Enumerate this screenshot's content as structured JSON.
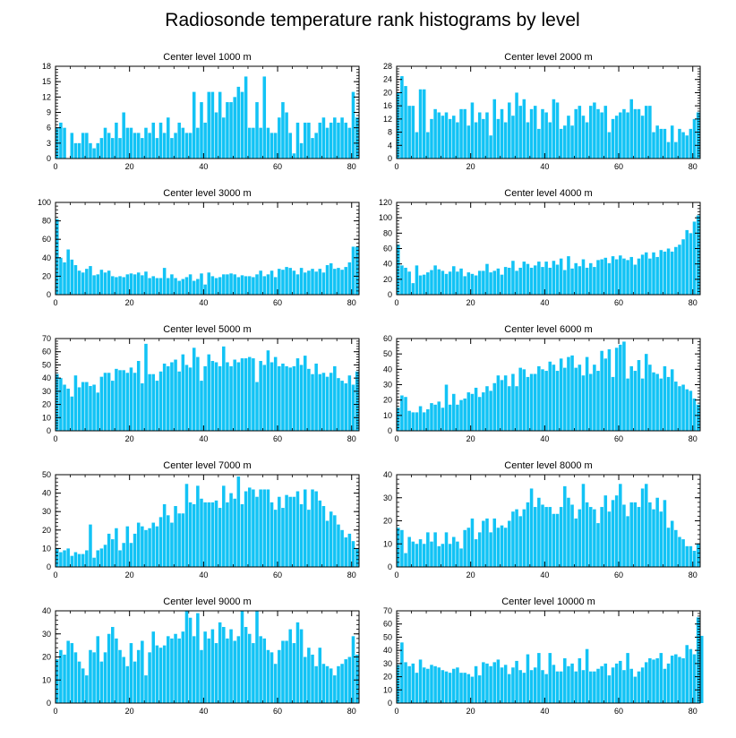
{
  "figure": {
    "title": "Radiosonde temperature rank histograms by level",
    "bar_color": "#12C3F5",
    "bar_edge_color": "#ffffff",
    "axis_color": "#000000"
  },
  "chart_data": [
    {
      "type": "bar",
      "title": "Center level 1000 m",
      "xlabel": "",
      "ylabel": "",
      "xlim": [
        0,
        82
      ],
      "ylim": [
        0,
        18
      ],
      "xticks": [
        0,
        20,
        40,
        60,
        80
      ],
      "yticks": [
        0,
        3,
        6,
        9,
        12,
        15,
        18
      ],
      "x_start": 0,
      "values": [
        6,
        7,
        6,
        0,
        5,
        3,
        3,
        5,
        5,
        3,
        2,
        3,
        4,
        6,
        5,
        4,
        7,
        4,
        9,
        6,
        6,
        5,
        5,
        4,
        6,
        5,
        7,
        4,
        7,
        5,
        8,
        4,
        5,
        7,
        6,
        5,
        5,
        13,
        6,
        11,
        7,
        13,
        13,
        9,
        13,
        8,
        11,
        11,
        12,
        14,
        13,
        16,
        6,
        6,
        11,
        6,
        16,
        6,
        5,
        5,
        8,
        11,
        9,
        5,
        1,
        7,
        3,
        7,
        7,
        4,
        5,
        7,
        8,
        6,
        7,
        8,
        7,
        8,
        7,
        6,
        13,
        8
      ]
    },
    {
      "type": "bar",
      "title": "Center level 2000 m",
      "xlabel": "",
      "ylabel": "",
      "xlim": [
        0,
        82
      ],
      "ylim": [
        0,
        28
      ],
      "xticks": [
        0,
        20,
        40,
        60,
        80
      ],
      "yticks": [
        0,
        4,
        8,
        12,
        16,
        20,
        24,
        28
      ],
      "x_start": 0,
      "values": [
        20,
        25,
        22,
        16,
        16,
        8,
        21,
        21,
        8,
        12,
        15,
        14,
        13,
        14,
        12,
        13,
        11,
        15,
        15,
        10,
        17,
        11,
        14,
        12,
        14,
        7,
        18,
        12,
        15,
        11,
        17,
        13,
        20,
        16,
        18,
        11,
        15,
        16,
        9,
        15,
        14,
        11,
        18,
        17,
        9,
        10,
        13,
        10,
        15,
        16,
        13,
        11,
        16,
        17,
        15,
        14,
        16,
        8,
        12,
        13,
        14,
        15,
        14,
        18,
        15,
        15,
        13,
        16,
        16,
        8,
        10,
        9,
        9,
        5,
        10,
        5,
        9,
        8,
        7,
        9,
        12,
        14
      ]
    },
    {
      "type": "bar",
      "title": "Center level 3000 m",
      "xlabel": "",
      "ylabel": "",
      "xlim": [
        0,
        82
      ],
      "ylim": [
        0,
        100
      ],
      "xticks": [
        0,
        20,
        40,
        60,
        80
      ],
      "yticks": [
        0,
        20,
        40,
        60,
        80,
        100
      ],
      "x_start": 0,
      "values": [
        82,
        40,
        35,
        49,
        38,
        32,
        26,
        24,
        28,
        31,
        21,
        22,
        27,
        24,
        26,
        20,
        19,
        20,
        19,
        22,
        23,
        22,
        24,
        21,
        25,
        18,
        20,
        18,
        18,
        29,
        18,
        22,
        18,
        15,
        17,
        19,
        22,
        15,
        17,
        23,
        11,
        24,
        20,
        18,
        19,
        22,
        22,
        23,
        22,
        19,
        21,
        20,
        20,
        19,
        22,
        26,
        20,
        22,
        26,
        19,
        28,
        27,
        30,
        29,
        26,
        22,
        29,
        24,
        26,
        28,
        25,
        28,
        24,
        32,
        34,
        28,
        29,
        27,
        30,
        35,
        52,
        52
      ]
    },
    {
      "type": "bar",
      "title": "Center level 4000 m",
      "xlabel": "",
      "ylabel": "",
      "xlim": [
        0,
        82
      ],
      "ylim": [
        0,
        120
      ],
      "xticks": [
        0,
        20,
        40,
        60,
        80
      ],
      "yticks": [
        0,
        20,
        40,
        60,
        80,
        100,
        120
      ],
      "x_start": 0,
      "values": [
        65,
        38,
        35,
        30,
        15,
        38,
        25,
        26,
        29,
        32,
        38,
        33,
        31,
        27,
        30,
        37,
        30,
        34,
        24,
        29,
        27,
        25,
        31,
        31,
        40,
        29,
        31,
        34,
        26,
        36,
        35,
        44,
        31,
        35,
        43,
        40,
        35,
        38,
        43,
        36,
        43,
        35,
        44,
        39,
        47,
        32,
        50,
        34,
        41,
        37,
        46,
        35,
        41,
        36,
        45,
        46,
        48,
        41,
        50,
        46,
        51,
        47,
        45,
        49,
        39,
        47,
        52,
        55,
        47,
        55,
        49,
        58,
        56,
        60,
        56,
        62,
        65,
        72,
        84,
        80,
        95,
        103
      ]
    },
    {
      "type": "bar",
      "title": "Center level 5000 m",
      "xlabel": "",
      "ylabel": "",
      "xlim": [
        0,
        82
      ],
      "ylim": [
        0,
        70
      ],
      "xticks": [
        0,
        20,
        40,
        60,
        80
      ],
      "yticks": [
        0,
        10,
        20,
        30,
        40,
        50,
        60,
        70
      ],
      "x_start": 0,
      "values": [
        43,
        40,
        35,
        32,
        26,
        42,
        33,
        37,
        37,
        34,
        35,
        29,
        41,
        44,
        44,
        38,
        47,
        46,
        46,
        44,
        48,
        44,
        53,
        36,
        66,
        43,
        43,
        38,
        45,
        51,
        49,
        52,
        54,
        45,
        58,
        50,
        48,
        63,
        56,
        38,
        49,
        58,
        53,
        52,
        49,
        64,
        52,
        49,
        54,
        52,
        55,
        55,
        56,
        55,
        37,
        53,
        50,
        61,
        52,
        56,
        49,
        51,
        49,
        48,
        49,
        55,
        50,
        57,
        47,
        43,
        51,
        43,
        44,
        41,
        44,
        49,
        40,
        38,
        36,
        42,
        35,
        45
      ]
    },
    {
      "type": "bar",
      "title": "Center level 6000 m",
      "xlabel": "",
      "ylabel": "",
      "xlim": [
        0,
        82
      ],
      "ylim": [
        0,
        60
      ],
      "xticks": [
        0,
        20,
        40,
        60,
        80
      ],
      "yticks": [
        0,
        10,
        20,
        30,
        40,
        50,
        60
      ],
      "x_start": 0,
      "values": [
        15,
        23,
        22,
        13,
        12,
        12,
        16,
        12,
        14,
        18,
        17,
        19,
        15,
        30,
        17,
        24,
        17,
        20,
        21,
        25,
        24,
        28,
        22,
        25,
        29,
        26,
        31,
        36,
        33,
        36,
        29,
        37,
        29,
        41,
        40,
        35,
        37,
        37,
        42,
        40,
        39,
        45,
        43,
        39,
        47,
        41,
        48,
        49,
        41,
        43,
        36,
        48,
        37,
        43,
        39,
        52,
        47,
        53,
        35,
        54,
        56,
        58,
        34,
        42,
        39,
        46,
        34,
        50,
        43,
        38,
        37,
        34,
        42,
        35,
        40,
        32,
        29,
        30,
        27,
        26,
        21,
        17
      ]
    },
    {
      "type": "bar",
      "title": "Center level 7000 m",
      "xlabel": "",
      "ylabel": "",
      "xlim": [
        0,
        82
      ],
      "ylim": [
        0,
        50
      ],
      "xticks": [
        0,
        20,
        40,
        60,
        80
      ],
      "yticks": [
        0,
        10,
        20,
        30,
        40,
        50
      ],
      "x_start": 0,
      "values": [
        10,
        8,
        9,
        10,
        6,
        8,
        7,
        7,
        9,
        23,
        5,
        9,
        10,
        12,
        18,
        15,
        21,
        9,
        13,
        22,
        13,
        18,
        24,
        22,
        20,
        21,
        24,
        22,
        27,
        34,
        28,
        24,
        33,
        29,
        29,
        45,
        35,
        34,
        44,
        37,
        35,
        35,
        35,
        36,
        32,
        44,
        35,
        40,
        37,
        49,
        34,
        41,
        43,
        42,
        38,
        42,
        42,
        42,
        35,
        31,
        38,
        32,
        39,
        38,
        38,
        41,
        34,
        42,
        31,
        42,
        41,
        36,
        33,
        25,
        30,
        28,
        23,
        20,
        16,
        18,
        14,
        10
      ]
    },
    {
      "type": "bar",
      "title": "Center level 8000 m",
      "xlabel": "",
      "ylabel": "",
      "xlim": [
        0,
        82
      ],
      "ylim": [
        0,
        40
      ],
      "xticks": [
        0,
        20,
        40,
        60,
        80
      ],
      "yticks": [
        0,
        10,
        20,
        30,
        40
      ],
      "x_start": 0,
      "values": [
        17,
        16,
        6,
        13,
        11,
        10,
        12,
        10,
        15,
        11,
        15,
        9,
        10,
        15,
        10,
        13,
        11,
        8,
        16,
        17,
        21,
        12,
        15,
        20,
        21,
        15,
        21,
        17,
        18,
        17,
        20,
        24,
        25,
        22,
        25,
        28,
        34,
        26,
        30,
        27,
        26,
        26,
        23,
        23,
        26,
        35,
        30,
        27,
        21,
        25,
        36,
        28,
        26,
        25,
        19,
        26,
        31,
        24,
        29,
        31,
        36,
        27,
        22,
        28,
        28,
        26,
        34,
        36,
        28,
        25,
        30,
        24,
        29,
        17,
        20,
        16,
        13,
        12,
        9,
        9,
        7,
        10
      ]
    },
    {
      "type": "bar",
      "title": "Center level 9000 m",
      "xlabel": "",
      "ylabel": "",
      "xlim": [
        0,
        82
      ],
      "ylim": [
        0,
        40
      ],
      "xticks": [
        0,
        20,
        40,
        60,
        80
      ],
      "yticks": [
        0,
        10,
        20,
        30,
        40
      ],
      "x_start": 0,
      "values": [
        19,
        23,
        21,
        27,
        26,
        22,
        18,
        15,
        12,
        23,
        22,
        29,
        18,
        22,
        30,
        33,
        28,
        23,
        20,
        16,
        26,
        18,
        23,
        27,
        12,
        22,
        31,
        25,
        24,
        25,
        29,
        28,
        30,
        28,
        31,
        40,
        37,
        29,
        39,
        23,
        31,
        28,
        32,
        26,
        35,
        33,
        28,
        32,
        27,
        29,
        40,
        33,
        30,
        26,
        40,
        29,
        28,
        23,
        22,
        17,
        23,
        27,
        27,
        32,
        26,
        35,
        32,
        20,
        24,
        21,
        16,
        24,
        17,
        16,
        15,
        12,
        16,
        17,
        19,
        20,
        29,
        21
      ]
    },
    {
      "type": "bar",
      "title": "Center level 10000 m",
      "xlabel": "",
      "ylabel": "",
      "xlim": [
        0,
        82
      ],
      "ylim": [
        0,
        70
      ],
      "xticks": [
        0,
        20,
        40,
        60,
        80
      ],
      "yticks": [
        0,
        10,
        20,
        30,
        40,
        50,
        60,
        70
      ],
      "x_start": 0,
      "values": [
        29,
        46,
        31,
        28,
        30,
        23,
        33,
        27,
        26,
        29,
        28,
        27,
        25,
        24,
        23,
        26,
        27,
        23,
        23,
        22,
        20,
        28,
        21,
        31,
        30,
        28,
        31,
        33,
        27,
        29,
        22,
        27,
        32,
        25,
        23,
        37,
        25,
        27,
        38,
        25,
        22,
        38,
        29,
        24,
        24,
        34,
        28,
        30,
        24,
        34,
        25,
        41,
        24,
        24,
        26,
        28,
        30,
        21,
        27,
        30,
        32,
        25,
        38,
        26,
        20,
        24,
        27,
        31,
        34,
        33,
        34,
        38,
        26,
        30,
        36,
        37,
        35,
        34,
        44,
        41,
        37,
        65,
        51
      ]
    }
  ]
}
